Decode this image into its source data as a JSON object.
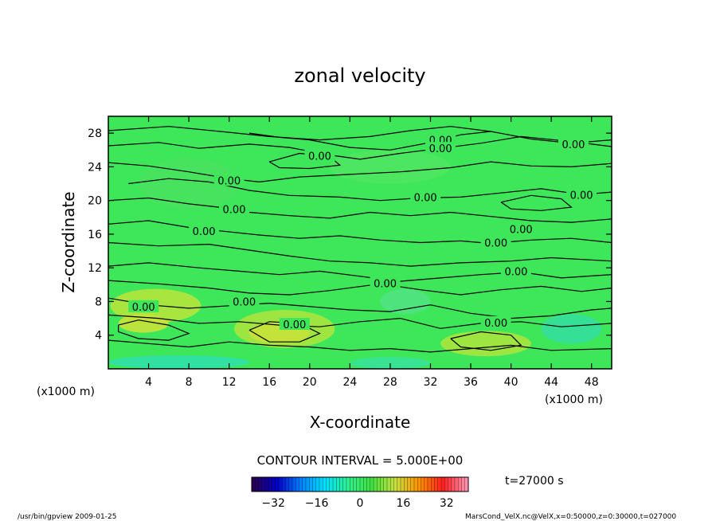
{
  "chart_data": {
    "type": "contour",
    "title": "zonal velocity",
    "xlabel": "X-coordinate",
    "ylabel": "Z-coordinate",
    "x_unit_label": "(x1000 m)",
    "y_unit_label": "(x1000 m)",
    "xlim": [
      0,
      50
    ],
    "ylim": [
      0,
      30
    ],
    "x_ticks": [
      4,
      8,
      12,
      16,
      20,
      24,
      28,
      32,
      36,
      40,
      44,
      48
    ],
    "y_ticks": [
      4,
      8,
      12,
      16,
      20,
      24,
      28
    ],
    "contour_interval_label": "CONTOUR INTERVAL = 5.000E+00",
    "contour_labels": [
      {
        "text": "0.00",
        "x": 21,
        "y": 25.2
      },
      {
        "text": "0.00",
        "x": 33,
        "y": 27.1
      },
      {
        "text": "0.00",
        "x": 33,
        "y": 26.1
      },
      {
        "text": "0.00",
        "x": 46.2,
        "y": 26.6
      },
      {
        "text": "0.00",
        "x": 12,
        "y": 22.3
      },
      {
        "text": "0.00",
        "x": 31.5,
        "y": 20.3
      },
      {
        "text": "0.00",
        "x": 47,
        "y": 20.6
      },
      {
        "text": "0.00",
        "x": 12.5,
        "y": 18.9
      },
      {
        "text": "0.00",
        "x": 9.5,
        "y": 16.3
      },
      {
        "text": "0.00",
        "x": 41,
        "y": 16.5
      },
      {
        "text": "0.00",
        "x": 38.5,
        "y": 14.9
      },
      {
        "text": "0.00",
        "x": 40.5,
        "y": 11.5
      },
      {
        "text": "0.00",
        "x": 27.5,
        "y": 10.1
      },
      {
        "text": "0.00",
        "x": 3.5,
        "y": 7.3
      },
      {
        "text": "0.00",
        "x": 13.5,
        "y": 7.9
      },
      {
        "text": "0.00",
        "x": 18.5,
        "y": 5.2
      },
      {
        "text": "0.00",
        "x": 38.5,
        "y": 5.4
      }
    ],
    "colorbar": {
      "ticks": [
        -32,
        -16,
        0,
        16,
        32
      ],
      "range": [
        -40,
        40
      ],
      "colors": [
        "#2a0050",
        "#0000c8",
        "#0080ff",
        "#00e0ff",
        "#30f090",
        "#40e040",
        "#c8e040",
        "#ff9000",
        "#ff2020",
        "#ff90b0"
      ]
    },
    "time_label": "t=27000 s",
    "colors": {
      "field": "#3ee75a",
      "line": "#000000"
    }
  },
  "footer": {
    "left": "/usr/bin/gpview  2009-01-25",
    "right": "MarsCond_VelX.nc@VelX,x=0:50000,z=0:30000,t=027000"
  }
}
